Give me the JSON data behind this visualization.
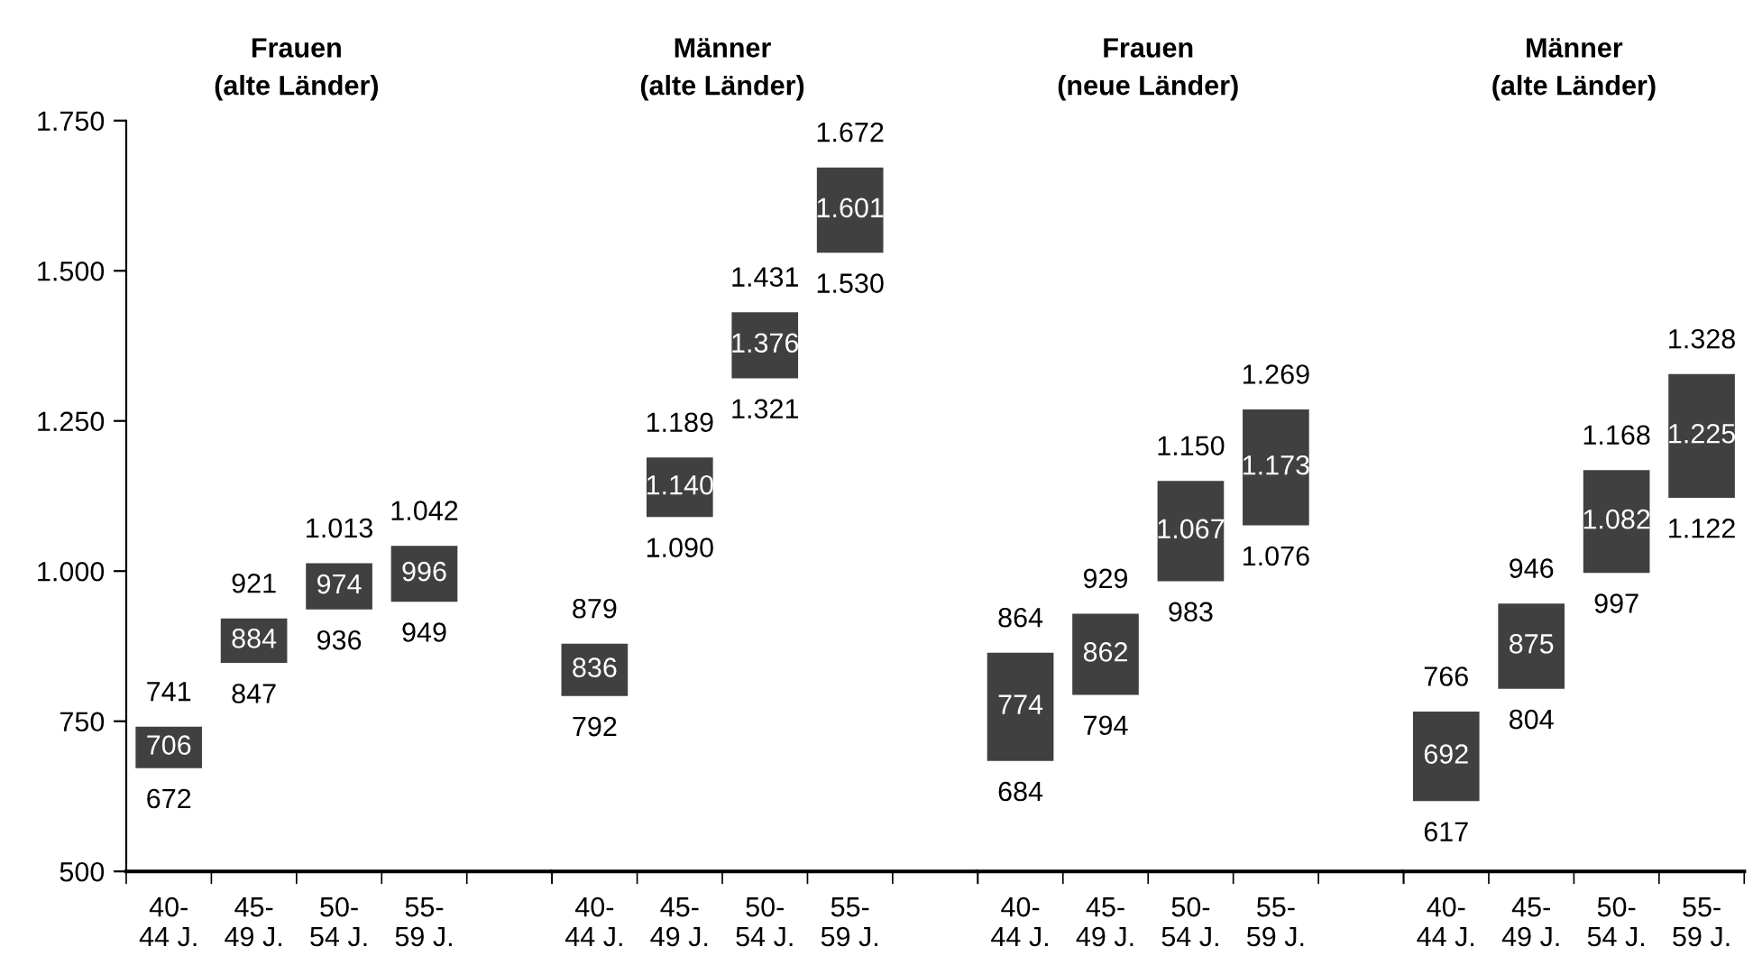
{
  "chart_data": [
    {
      "type": "bar",
      "title": "Frauen\n(alte Länder)",
      "categories": [
        "40-\n44 J.",
        "45-\n49 J.",
        "50-\n54 J.",
        "55-\n59 J."
      ],
      "base": [
        672,
        847,
        936,
        949
      ],
      "values": [
        69,
        74,
        77,
        93
      ],
      "color": "#404040",
      "ylim": [
        500,
        1750
      ],
      "yticks": [
        {
          "value": 500,
          "label": "500"
        },
        {
          "value": 750,
          "label": "750"
        },
        {
          "value": 1000,
          "label": "1.000"
        },
        {
          "value": 1250,
          "label": "1.250"
        },
        {
          "value": 1500,
          "label": "1.500"
        },
        {
          "value": 1750,
          "label": "1.750"
        }
      ],
      "grid": false,
      "annotations": [
        "706",
        "884",
        "974",
        "996",
        {
          "text": "741",
          "x": "40-\n44 J.",
          "y": 741
        },
        {
          "text": "672",
          "x": "40-\n44 J.",
          "y": 672
        },
        {
          "text": "921",
          "x": "45-\n49 J.",
          "y": 921
        },
        {
          "text": "847",
          "x": "45-\n49 J.",
          "y": 847
        },
        {
          "text": "1.013",
          "x": "50-\n54 J.",
          "y": 1013
        },
        {
          "text": "936",
          "x": "50-\n54 J.",
          "y": 936
        },
        {
          "text": "1.042",
          "x": "55-\n59 J.",
          "y": 1042
        },
        {
          "text": "949",
          "x": "55-\n59 J.",
          "y": 949
        }
      ]
    },
    {
      "type": "bar",
      "title": "Männer\n(alte Länder)",
      "tick_labels": "x",
      "categories": [
        "40-\n44 J.",
        "45-\n49 J.",
        "50-\n54 J.",
        "55-\n59 J."
      ],
      "base": [
        792,
        1090,
        1321,
        1530
      ],
      "values": [
        87,
        99,
        110,
        142
      ],
      "color": "#404040",
      "ylim": [
        500,
        1750
      ],
      "grid": false,
      "annotations": [
        "836",
        "1.140",
        "1.376",
        "1.601",
        {
          "text": "879",
          "x": "40-\n44 J.",
          "y": 879
        },
        {
          "text": "792",
          "x": "40-\n44 J.",
          "y": 792
        },
        {
          "text": "1.189",
          "x": "45-\n49 J.",
          "y": 1189
        },
        {
          "text": "1.090",
          "x": "45-\n49 J.",
          "y": 1090
        },
        {
          "text": "1.431",
          "x": "50-\n54 J.",
          "y": 1431
        },
        {
          "text": "1.321",
          "x": "50-\n54 J.",
          "y": 1321
        },
        {
          "text": "1.672",
          "x": "55-\n59 J.",
          "y": 1672
        },
        {
          "text": "1.530",
          "x": "55-\n59 J.",
          "y": 1530
        }
      ]
    },
    {
      "type": "bar",
      "title": "Frauen\n(neue Länder)",
      "tick_labels": "x",
      "categories": [
        "40-\n44 J.",
        "45-\n49 J.",
        "50-\n54 J.",
        "55-\n59 J."
      ],
      "base": [
        684,
        794,
        983,
        1076
      ],
      "values": [
        180,
        135,
        167,
        193
      ],
      "color": "#404040",
      "ylim": [
        500,
        1750
      ],
      "grid": false,
      "annotations": [
        "774",
        "862",
        "1.067",
        "1.173",
        {
          "text": "864",
          "x": "40-\n44 J.",
          "y": 864
        },
        {
          "text": "684",
          "x": "40-\n44 J.",
          "y": 684
        },
        {
          "text": "929",
          "x": "45-\n49 J.",
          "y": 929
        },
        {
          "text": "794",
          "x": "45-\n49 J.",
          "y": 794
        },
        {
          "text": "1.150",
          "x": "50-\n54 J.",
          "y": 1150
        },
        {
          "text": "983",
          "x": "50-\n54 J.",
          "y": 983
        },
        {
          "text": "1.269",
          "x": "55-\n59 J.",
          "y": 1269
        },
        {
          "text": "1.076",
          "x": "55-\n59 J.",
          "y": 1076
        }
      ]
    },
    {
      "type": "bar",
      "title": "Männer\n(alte Länder)",
      "tick_labels": "x",
      "categories": [
        "40-\n44 J.",
        "45-\n49 J.",
        "50-\n54 J.",
        "55-\n59 J."
      ],
      "base": [
        617,
        804,
        997,
        1122
      ],
      "values": [
        149,
        142,
        171,
        206
      ],
      "color": "#404040",
      "ylim": [
        500,
        1750
      ],
      "grid": false,
      "annotations": [
        "692",
        "875",
        "1.082",
        "1.225",
        {
          "text": "766",
          "x": "40-\n44 J.",
          "y": 766
        },
        {
          "text": "617",
          "x": "40-\n44 J.",
          "y": 617
        },
        {
          "text": "946",
          "x": "45-\n49 J.",
          "y": 946
        },
        {
          "text": "804",
          "x": "45-\n49 J.",
          "y": 804
        },
        {
          "text": "1.168",
          "x": "50-\n54 J.",
          "y": 1168
        },
        {
          "text": "997",
          "x": "50-\n54 J.",
          "y": 997
        },
        {
          "text": "1.328",
          "x": "55-\n59 J.",
          "y": 1328
        },
        {
          "text": "1.122",
          "x": "55-\n59 J.",
          "y": 1122
        }
      ]
    }
  ]
}
